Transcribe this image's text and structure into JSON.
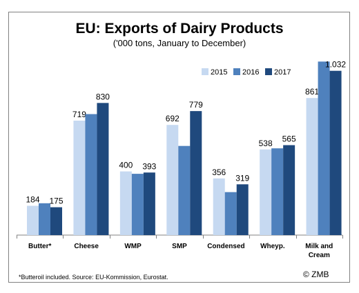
{
  "title": "EU: Exports of Dairy Products",
  "subtitle": "('000 tons, January to December)",
  "footnote": "*Butteroil included.  Source: EU-Kommission, Eurostat.",
  "copyright": "© ZMB",
  "chart_data": {
    "type": "bar",
    "title": "EU: Exports of Dairy Products",
    "subtitle": "('000 tons, January to December)",
    "categories": [
      "Butter*",
      "Cheese",
      "WMP",
      "SMP",
      "Condensed",
      "Wheyp.",
      "Milk and Cream"
    ],
    "category_lines": [
      [
        "Butter*"
      ],
      [
        "Cheese"
      ],
      [
        "WMP"
      ],
      [
        "SMP"
      ],
      [
        "Condensed"
      ],
      [
        "Wheyp."
      ],
      [
        "Milk and",
        "Cream"
      ]
    ],
    "series": [
      {
        "name": "2015",
        "color": "#c6d9f1",
        "values": [
          184,
          719,
          400,
          692,
          356,
          538,
          861
        ],
        "labels": [
          "184",
          "719",
          "400",
          "692",
          "356",
          "538",
          "861"
        ]
      },
      {
        "name": "2016",
        "color": "#4f81bd",
        "values": [
          200,
          760,
          385,
          560,
          270,
          545,
          1090
        ],
        "labels": [
          "",
          "",
          "",
          "",
          "",
          "",
          ""
        ]
      },
      {
        "name": "2017",
        "color": "#1f497d",
        "values": [
          175,
          830,
          393,
          779,
          319,
          565,
          1032
        ],
        "labels": [
          "175",
          "830",
          "393",
          "779",
          "319",
          "565",
          "1.032"
        ]
      }
    ],
    "ylim": [
      0,
      1100
    ],
    "grid": false,
    "legend_position": "top-right"
  }
}
